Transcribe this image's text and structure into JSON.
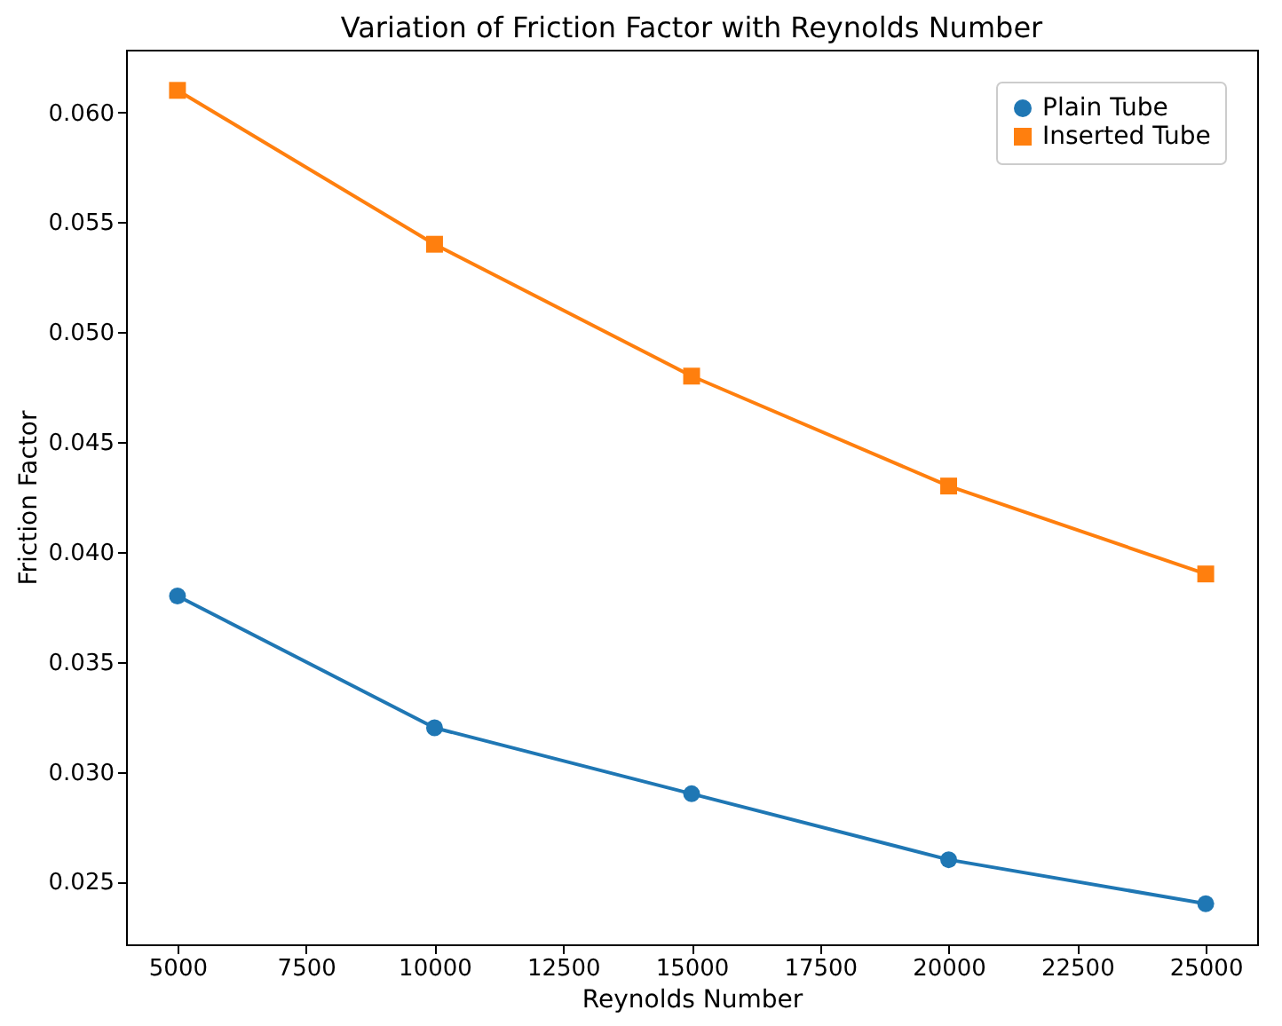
{
  "chart_data": {
    "type": "line",
    "title": "Variation of Friction Factor with Reynolds Number",
    "xlabel": "Reynolds Number",
    "ylabel": "Friction Factor",
    "x": [
      5000,
      10000,
      15000,
      20000,
      25000
    ],
    "series": [
      {
        "name": "Plain Tube",
        "color": "#1f77b4",
        "marker": "circle",
        "values": [
          0.038,
          0.032,
          0.029,
          0.026,
          0.024
        ]
      },
      {
        "name": "Inserted Tube",
        "color": "#ff7f0e",
        "marker": "square",
        "values": [
          0.061,
          0.054,
          0.048,
          0.043,
          0.039
        ]
      }
    ],
    "xlim": [
      4000,
      26000
    ],
    "xticks": [
      5000,
      7500,
      10000,
      12500,
      15000,
      17500,
      20000,
      22500,
      25000
    ],
    "ylim": [
      0.02215,
      0.06285
    ],
    "yticks": [
      0.025,
      {
        "value": 0.03,
        "label": "0.030"
      },
      0.035,
      {
        "value": 0.04,
        "label": "0.040"
      },
      0.045,
      {
        "value": 0.05,
        "label": "0.050"
      },
      0.055,
      {
        "value": 0.06,
        "label": "0.060"
      }
    ],
    "grid": false,
    "legend": "top right",
    "line_style": "solid"
  }
}
